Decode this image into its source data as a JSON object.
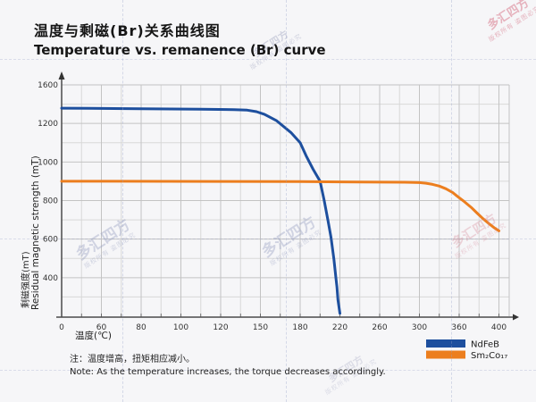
{
  "header": {
    "title_zh": "温度与剩磁(Br)关系曲线图",
    "title_en": "Temperature vs. remanence (Br) curve"
  },
  "note": {
    "zh": "注：温度增高，扭矩相应减小。",
    "en": "Note: As the temperature increases, the torque decreases accordingly."
  },
  "watermark": {
    "text": "多汇四方",
    "subtext": "版权所有 盗图必究"
  },
  "colors": {
    "ndfeb": "#1d4f9e",
    "sm2co17": "#ec7e1e",
    "grid_major": "#c3c3c3",
    "grid_minor": "#d8d8d8",
    "axis": "#4a4a4a",
    "text": "#1a1a1a"
  },
  "chart_data": {
    "type": "line",
    "title_zh": "温度与剩磁(Br)关系曲线图",
    "title_en": "Temperature vs. remanence (Br) curve",
    "xlabel": "温度(℃)",
    "ylabel_zh": "剩磁强度(mT)",
    "ylabel_en": "Residual magnetic strength (mT)",
    "x_ticks": [
      0,
      60,
      80,
      100,
      120,
      150,
      180,
      220,
      260,
      300,
      360,
      400
    ],
    "y_ticks": [
      0,
      400,
      600,
      800,
      1000,
      1200,
      1600
    ],
    "xlim": [
      0,
      400
    ],
    "ylim": [
      0,
      1600
    ],
    "grid": true,
    "legend_position": "bottom-right",
    "series": [
      {
        "name": "NdFeB",
        "color": "#1d4f9e",
        "points": [
          [
            0,
            1358
          ],
          [
            40,
            1356
          ],
          [
            80,
            1352
          ],
          [
            110,
            1348
          ],
          [
            130,
            1343
          ],
          [
            140,
            1338
          ],
          [
            147,
            1322
          ],
          [
            153,
            1295
          ],
          [
            162,
            1230
          ],
          [
            173,
            1153
          ],
          [
            180,
            1100
          ],
          [
            186,
            1032
          ],
          [
            193,
            962
          ],
          [
            200,
            900
          ],
          [
            204,
            805
          ],
          [
            208,
            695
          ],
          [
            211,
            610
          ],
          [
            214,
            495
          ],
          [
            216,
            390
          ],
          [
            217,
            300
          ],
          [
            218,
            170
          ],
          [
            220,
            30
          ]
        ]
      },
      {
        "name": "Sm₂Co₁₇",
        "color": "#ec7e1e",
        "points": [
          [
            0,
            900
          ],
          [
            60,
            900
          ],
          [
            120,
            899
          ],
          [
            180,
            898
          ],
          [
            240,
            896
          ],
          [
            285,
            895
          ],
          [
            300,
            893
          ],
          [
            310,
            890
          ],
          [
            320,
            884
          ],
          [
            330,
            875
          ],
          [
            340,
            861
          ],
          [
            350,
            842
          ],
          [
            358,
            820
          ],
          [
            365,
            795
          ],
          [
            372,
            765
          ],
          [
            378,
            735
          ],
          [
            384,
            706
          ],
          [
            390,
            680
          ],
          [
            395,
            660
          ],
          [
            400,
            643
          ]
        ]
      }
    ]
  }
}
